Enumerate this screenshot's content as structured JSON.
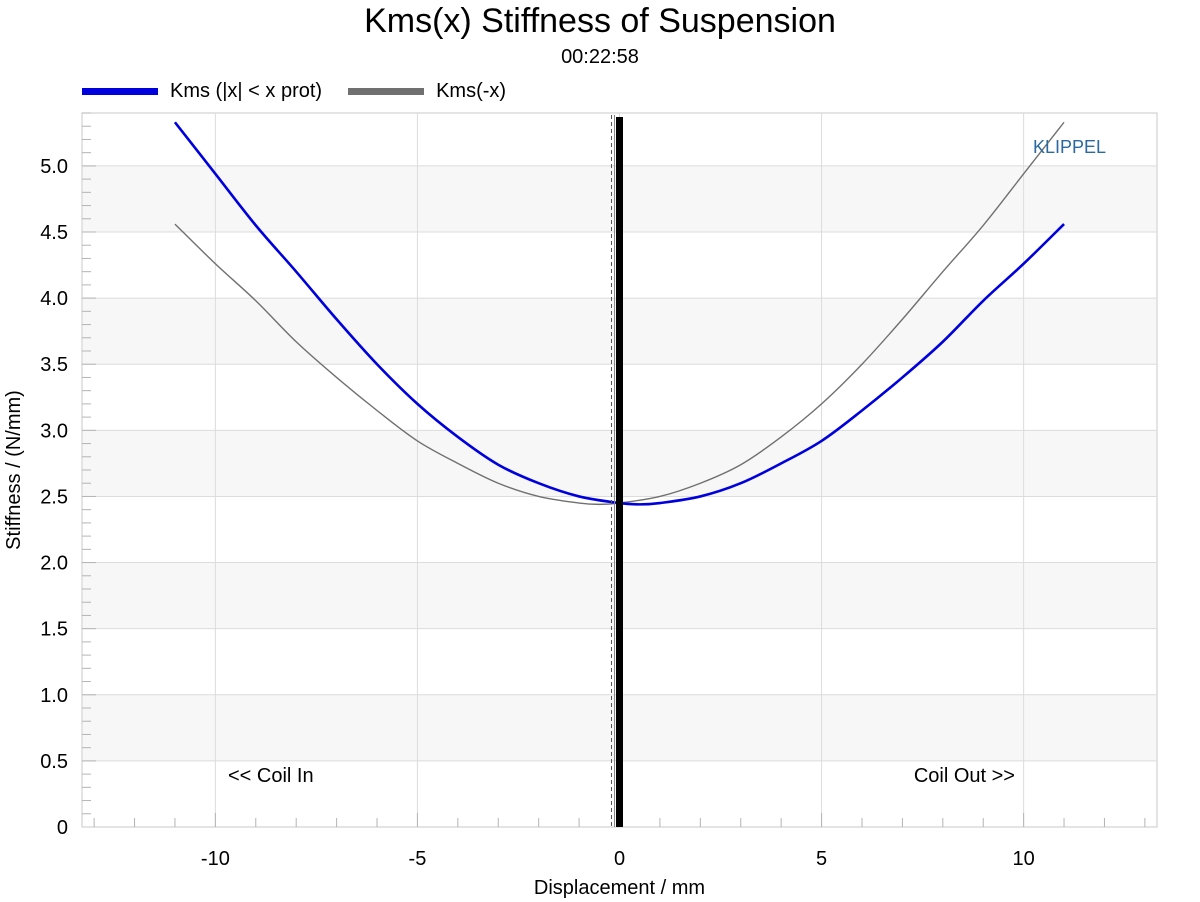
{
  "chart_data": {
    "type": "line",
    "title": "Kms(x) Stiffness of Suspension",
    "subtitle": "00:22:58",
    "xlabel": "Displacement / mm",
    "ylabel": "Stiffness / (N/mm)",
    "xlim": [
      -13.3,
      13.3
    ],
    "ylim": [
      0,
      5.4
    ],
    "x_ticks": [
      -10,
      -5,
      0,
      5,
      10
    ],
    "x_tick_labels": [
      "-10",
      "-5",
      "0",
      "5",
      "10"
    ],
    "y_ticks": [
      0,
      0.5,
      1.0,
      1.5,
      2.0,
      2.5,
      3.0,
      3.5,
      4.0,
      4.5,
      5.0
    ],
    "y_tick_labels": [
      "0",
      "0.5",
      "1.0",
      "1.5",
      "2.0",
      "2.5",
      "3.0",
      "3.5",
      "4.0",
      "4.5",
      "5.0"
    ],
    "grid": true,
    "legend_position": "top-left",
    "series": [
      {
        "name": "Kms (|x| < x prot)",
        "color": "#0000dd",
        "x": [
          -11,
          -10,
          -9,
          -8,
          -7,
          -6,
          -5,
          -4,
          -3,
          -2,
          -1,
          0,
          0.5,
          1,
          2,
          3,
          4,
          5,
          6,
          7,
          8,
          9,
          10,
          11
        ],
        "y": [
          5.33,
          4.94,
          4.55,
          4.2,
          3.84,
          3.5,
          3.2,
          2.95,
          2.74,
          2.6,
          2.5,
          2.45,
          2.44,
          2.45,
          2.5,
          2.6,
          2.75,
          2.92,
          3.15,
          3.4,
          3.67,
          3.98,
          4.26,
          4.56
        ]
      },
      {
        "name": "Kms(-x)",
        "color": "#707070",
        "x": [
          -11,
          -10,
          -9,
          -8,
          -7,
          -6,
          -5,
          -4,
          -3,
          -2,
          -1,
          -0.5,
          0,
          1,
          2,
          3,
          4,
          5,
          6,
          7,
          8,
          9,
          10,
          11
        ],
        "y": [
          4.56,
          4.26,
          3.98,
          3.67,
          3.4,
          3.15,
          2.92,
          2.75,
          2.6,
          2.5,
          2.45,
          2.44,
          2.45,
          2.5,
          2.6,
          2.74,
          2.95,
          3.2,
          3.5,
          3.84,
          4.2,
          4.55,
          4.94,
          5.33
        ]
      }
    ],
    "reference_line_x": 0,
    "annotations": {
      "left": "<< Coil In",
      "right": "Coil Out >>",
      "brand": "KLIPPEL"
    }
  }
}
